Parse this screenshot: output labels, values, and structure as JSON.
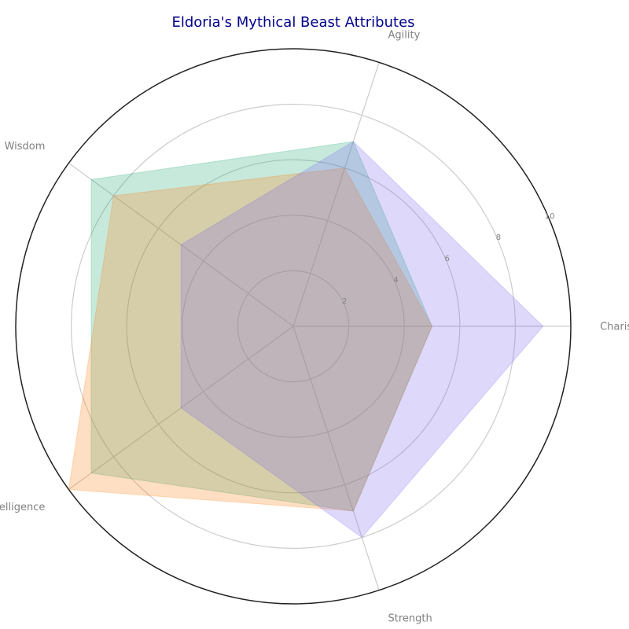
{
  "chart_data": {
    "type": "radar",
    "title": "Eldoria's Mythical Beast Attributes",
    "axes": [
      "Charisma",
      "Agility",
      "Wisdom",
      "Intelligence",
      "Strength"
    ],
    "rlim": [
      0,
      10
    ],
    "rticks": [
      2,
      4,
      6,
      8,
      10
    ],
    "grid": true,
    "series": [
      {
        "values": [
          5,
          7,
          9,
          9,
          7
        ],
        "color": "#1fa774"
      },
      {
        "values": [
          5,
          6,
          8,
          10,
          7
        ],
        "color": "#ff7f0e"
      },
      {
        "values": [
          9,
          7,
          5,
          5,
          8
        ],
        "color": "#7b68ee"
      }
    ]
  }
}
